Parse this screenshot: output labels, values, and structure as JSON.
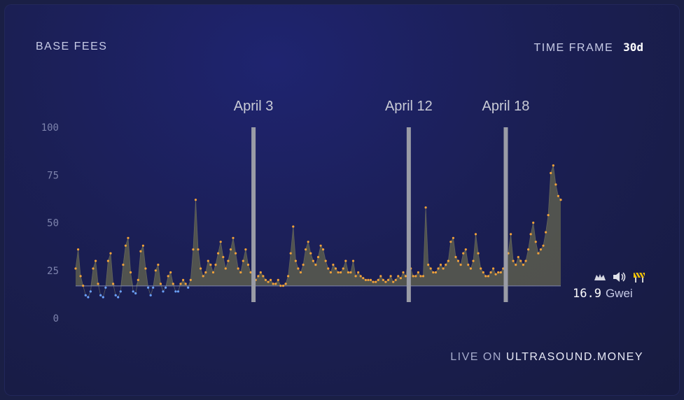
{
  "header": {
    "title": "BASE FEES",
    "timeframe_label": "TIME FRAME",
    "timeframe_value": "30d"
  },
  "current": {
    "value": "16.9",
    "unit": "Gwei",
    "icons": [
      "bat-icon",
      "speaker-icon",
      "barrier-icon"
    ]
  },
  "footer": {
    "prefix": "LIVE ON",
    "brand": "ULTRASOUND.MONEY"
  },
  "colors": {
    "area": "#58594f",
    "point_high": "#f0a13a",
    "point_low": "#6aa0ff",
    "marker": "#9a9ca6",
    "baseline": "#7e84ad"
  },
  "chart_data": {
    "type": "area",
    "title": "BASE FEES",
    "ylabel": "",
    "xlabel": "",
    "ylim": [
      0,
      100
    ],
    "yticks": [
      100,
      75,
      50,
      25,
      0
    ],
    "baseline": 16.9,
    "x_range_days": 30,
    "markers": [
      {
        "label": "April 3",
        "x": 11
      },
      {
        "label": "April 12",
        "x": 20.6
      },
      {
        "label": "April 18",
        "x": 26.6
      }
    ],
    "values": [
      26,
      36,
      22,
      17,
      12,
      11,
      14,
      26,
      30,
      18,
      12,
      11,
      16,
      30,
      34,
      18,
      12,
      11,
      14,
      28,
      38,
      42,
      24,
      14,
      13,
      20,
      35,
      38,
      26,
      16,
      12,
      16,
      25,
      28,
      18,
      14,
      16,
      22,
      24,
      18,
      14,
      14,
      18,
      20,
      18,
      16,
      20,
      36,
      62,
      36,
      26,
      22,
      24,
      30,
      28,
      24,
      28,
      34,
      40,
      32,
      26,
      30,
      36,
      42,
      34,
      26,
      24,
      30,
      36,
      28,
      24,
      22,
      20,
      22,
      24,
      22,
      20,
      19,
      20,
      18,
      18,
      20,
      17,
      17,
      18,
      22,
      34,
      48,
      30,
      26,
      24,
      28,
      36,
      40,
      34,
      30,
      28,
      32,
      38,
      36,
      30,
      26,
      24,
      28,
      26,
      24,
      24,
      26,
      30,
      24,
      24,
      30,
      22,
      24,
      22,
      21,
      20,
      20,
      20,
      19,
      19,
      20,
      22,
      20,
      19,
      20,
      22,
      19,
      20,
      22,
      21,
      24,
      22,
      30,
      26,
      22,
      22,
      24,
      22,
      22,
      58,
      28,
      26,
      24,
      24,
      26,
      28,
      26,
      28,
      30,
      40,
      42,
      32,
      30,
      28,
      34,
      36,
      28,
      26,
      30,
      44,
      34,
      26,
      24,
      22,
      22,
      24,
      26,
      23,
      24,
      24,
      26,
      28,
      34,
      44,
      30,
      28,
      32,
      30,
      28,
      30,
      36,
      44,
      50,
      40,
      34,
      36,
      38,
      45,
      54,
      76,
      80,
      70,
      64,
      62
    ]
  }
}
